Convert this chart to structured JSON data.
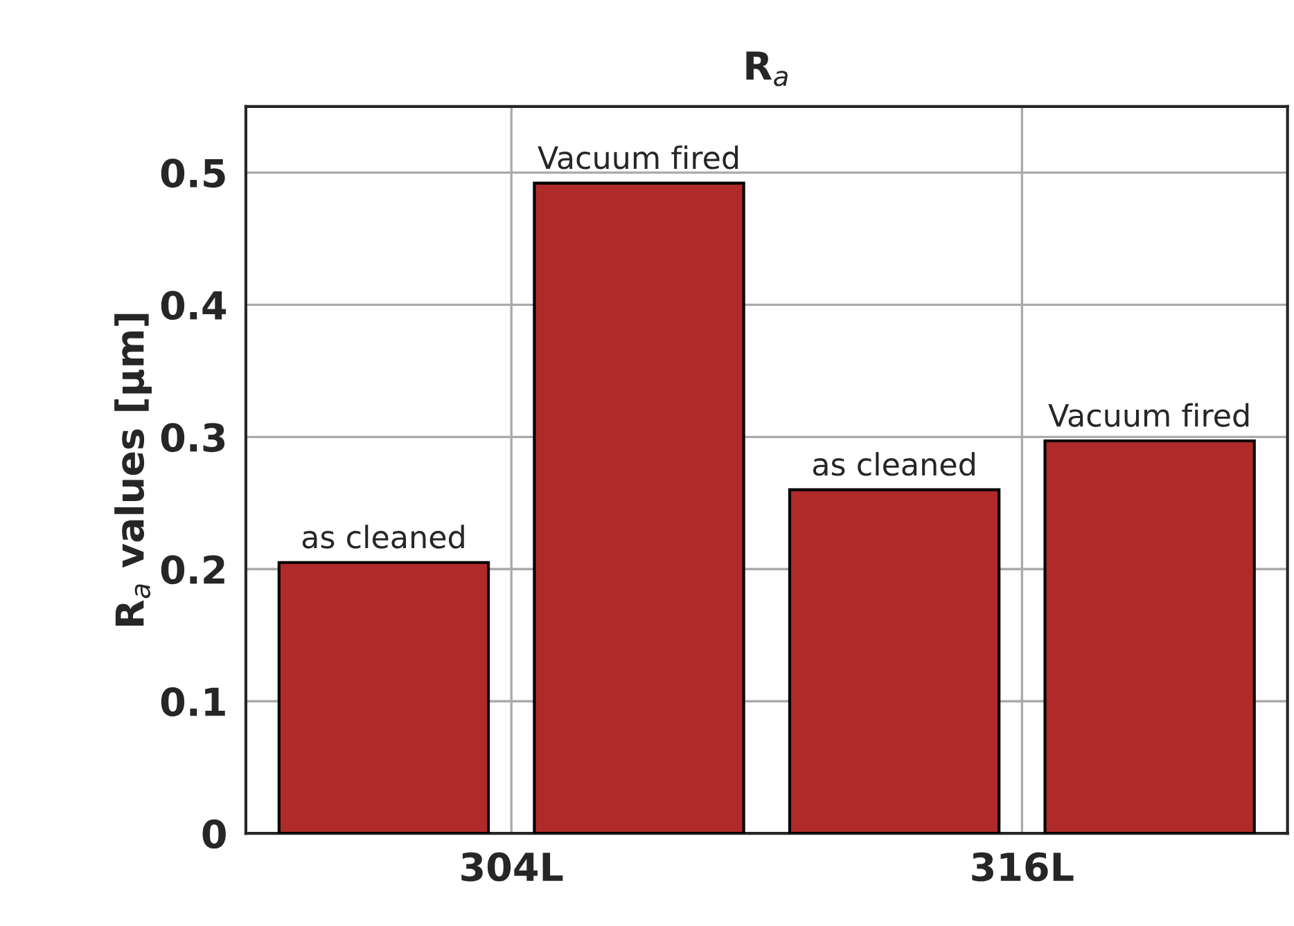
{
  "chart_data": {
    "type": "bar",
    "title": "R$_{a}$",
    "ylabel": "R$_{a}$ values [μm]",
    "categories": [
      "304L",
      "316L"
    ],
    "series": [
      {
        "name": "as cleaned",
        "color": "#b02a2a",
        "values": [
          0.205,
          0.26
        ]
      },
      {
        "name": "Vacuum fired",
        "color": "#b02a2a",
        "values": [
          0.492,
          0.297
        ]
      }
    ],
    "ylim": [
      0,
      0.55
    ],
    "yticks": [
      0,
      0.1,
      0.2,
      0.3,
      0.4,
      0.5
    ],
    "grid": true,
    "legend": false
  }
}
